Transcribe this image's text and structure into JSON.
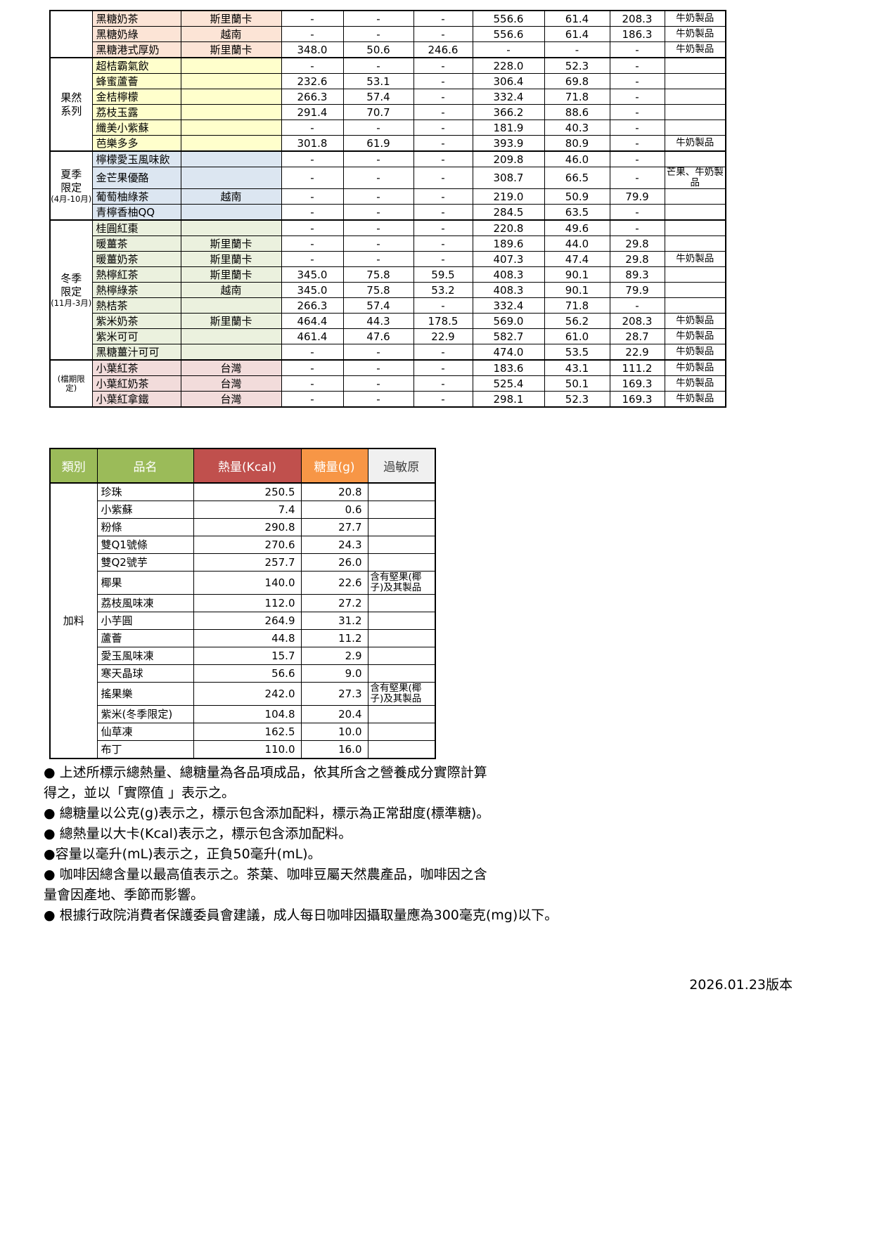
{
  "colors": {
    "header_green": "#9bbb59",
    "header_red": "#c0504d",
    "header_orange": "#f79646",
    "header_gray": "#f0f0f0"
  },
  "table1": {
    "groups": [
      {
        "label": "",
        "sublabel": "",
        "color": "#fce4d6",
        "rows": [
          {
            "name": "黑糖奶茶",
            "origin": "斯里蘭卡",
            "vals": [
              "-",
              "-",
              "-",
              "556.6",
              "61.4",
              "208.3"
            ],
            "allergen": "牛奶製品"
          },
          {
            "name": "黑糖奶綠",
            "origin": "越南",
            "vals": [
              "-",
              "-",
              "-",
              "556.6",
              "61.4",
              "186.3"
            ],
            "allergen": "牛奶製品"
          },
          {
            "name": "黑糖港式厚奶",
            "origin": "斯里蘭卡",
            "vals": [
              "348.0",
              "50.6",
              "246.6",
              "-",
              "-",
              "-"
            ],
            "allergen": "牛奶製品"
          }
        ]
      },
      {
        "label": "果然\n系列",
        "sublabel": "",
        "color": "#ffffcc",
        "rows": [
          {
            "name": "超桔霸氣飲",
            "origin": "",
            "vals": [
              "-",
              "-",
              "-",
              "228.0",
              "52.3",
              "-"
            ],
            "allergen": ""
          },
          {
            "name": "蜂蜜蘆薈",
            "origin": "",
            "vals": [
              "232.6",
              "53.1",
              "-",
              "306.4",
              "69.8",
              "-"
            ],
            "allergen": ""
          },
          {
            "name": "金桔檸檬",
            "origin": "",
            "vals": [
              "266.3",
              "57.4",
              "-",
              "332.4",
              "71.8",
              "-"
            ],
            "allergen": ""
          },
          {
            "name": "荔枝玉露",
            "origin": "",
            "vals": [
              "291.4",
              "70.7",
              "-",
              "366.2",
              "88.6",
              "-"
            ],
            "allergen": ""
          },
          {
            "name": "纖美小紫蘇",
            "origin": "",
            "vals": [
              "-",
              "-",
              "-",
              "181.9",
              "40.3",
              "-"
            ],
            "allergen": ""
          },
          {
            "name": "芭樂多多",
            "origin": "",
            "vals": [
              "301.8",
              "61.9",
              "-",
              "393.9",
              "80.9",
              "-"
            ],
            "allergen": "牛奶製品"
          }
        ]
      },
      {
        "label": "夏季\n限定",
        "sublabel": "(4月-10月)",
        "color": "#dce6f1",
        "rows": [
          {
            "name": "檸檬愛玉風味飲",
            "origin": "",
            "vals": [
              "-",
              "-",
              "-",
              "209.8",
              "46.0",
              "-"
            ],
            "allergen": ""
          },
          {
            "name": "金芒果優酪",
            "origin": "",
            "vals": [
              "-",
              "-",
              "-",
              "308.7",
              "66.5",
              "-"
            ],
            "allergen": "芒果、牛奶製品"
          },
          {
            "name": "葡萄柚綠茶",
            "origin": "越南",
            "vals": [
              "-",
              "-",
              "-",
              "219.0",
              "50.9",
              "79.9"
            ],
            "allergen": ""
          },
          {
            "name": "青檸香柚QQ",
            "origin": "",
            "vals": [
              "-",
              "-",
              "-",
              "284.5",
              "63.5",
              "-"
            ],
            "allergen": ""
          }
        ]
      },
      {
        "label": "冬季\n限定",
        "sublabel": "(11月-3月)",
        "color": "#ebf1de",
        "rows": [
          {
            "name": "桂圓紅棗",
            "origin": "",
            "vals": [
              "-",
              "-",
              "-",
              "220.8",
              "49.6",
              "-"
            ],
            "allergen": ""
          },
          {
            "name": "暖薑茶",
            "origin": "斯里蘭卡",
            "vals": [
              "-",
              "-",
              "-",
              "189.6",
              "44.0",
              "29.8"
            ],
            "allergen": ""
          },
          {
            "name": "暖薑奶茶",
            "origin": "斯里蘭卡",
            "vals": [
              "-",
              "-",
              "-",
              "407.3",
              "47.4",
              "29.8"
            ],
            "allergen": "牛奶製品"
          },
          {
            "name": "熱檸紅茶",
            "origin": "斯里蘭卡",
            "vals": [
              "345.0",
              "75.8",
              "59.5",
              "408.3",
              "90.1",
              "89.3"
            ],
            "allergen": ""
          },
          {
            "name": "熱檸綠茶",
            "origin": "越南",
            "vals": [
              "345.0",
              "75.8",
              "53.2",
              "408.3",
              "90.1",
              "79.9"
            ],
            "allergen": ""
          },
          {
            "name": "熱桔茶",
            "origin": "",
            "vals": [
              "266.3",
              "57.4",
              "-",
              "332.4",
              "71.8",
              "-"
            ],
            "allergen": ""
          },
          {
            "name": "紫米奶茶",
            "origin": "斯里蘭卡",
            "vals": [
              "464.4",
              "44.3",
              "178.5",
              "569.0",
              "56.2",
              "208.3"
            ],
            "allergen": "牛奶製品"
          },
          {
            "name": "紫米可可",
            "origin": "",
            "vals": [
              "461.4",
              "47.6",
              "22.9",
              "582.7",
              "61.0",
              "28.7"
            ],
            "allergen": "牛奶製品"
          },
          {
            "name": "黑糖薑汁可可",
            "origin": "",
            "vals": [
              "-",
              "-",
              "-",
              "474.0",
              "53.5",
              "22.9"
            ],
            "allergen": "牛奶製品"
          }
        ]
      },
      {
        "label": "",
        "sublabel": "(檔期限\n定)",
        "color": "#f2dcdb",
        "rows": [
          {
            "name": "小葉紅茶",
            "origin": "台灣",
            "vals": [
              "-",
              "-",
              "-",
              "183.6",
              "43.1",
              "111.2"
            ],
            "allergen": "牛奶製品"
          },
          {
            "name": "小葉紅奶茶",
            "origin": "台灣",
            "vals": [
              "-",
              "-",
              "-",
              "525.4",
              "50.1",
              "169.3"
            ],
            "allergen": "牛奶製品"
          },
          {
            "name": "小葉紅拿鐵",
            "origin": "台灣",
            "vals": [
              "-",
              "-",
              "-",
              "298.1",
              "52.3",
              "169.3"
            ],
            "allergen": "牛奶製品"
          }
        ]
      }
    ]
  },
  "table2": {
    "headers": {
      "category": "類別",
      "name": "品名",
      "kcal": "熱量(Kcal)",
      "sugar": "糖量(g)",
      "allergen": "過敏原"
    },
    "category": "加料",
    "rows": [
      {
        "name": "珍珠",
        "kcal": "250.5",
        "sugar": "20.8",
        "allergen": ""
      },
      {
        "name": "小紫蘇",
        "kcal": "7.4",
        "sugar": "0.6",
        "allergen": ""
      },
      {
        "name": "粉條",
        "kcal": "290.8",
        "sugar": "27.7",
        "allergen": ""
      },
      {
        "name": "雙Q1號條",
        "kcal": "270.6",
        "sugar": "24.3",
        "allergen": ""
      },
      {
        "name": "雙Q2號芋",
        "kcal": "257.7",
        "sugar": "26.0",
        "allergen": ""
      },
      {
        "name": "椰果",
        "kcal": "140.0",
        "sugar": "22.6",
        "allergen": "含有堅果(椰子)及其製品"
      },
      {
        "name": "荔枝風味凍",
        "kcal": "112.0",
        "sugar": "27.2",
        "allergen": ""
      },
      {
        "name": "小芋圓",
        "kcal": "264.9",
        "sugar": "31.2",
        "allergen": ""
      },
      {
        "name": "蘆薈",
        "kcal": "44.8",
        "sugar": "11.2",
        "allergen": ""
      },
      {
        "name": "愛玉風味凍",
        "kcal": "15.7",
        "sugar": "2.9",
        "allergen": ""
      },
      {
        "name": "寒天晶球",
        "kcal": "56.6",
        "sugar": "9.0",
        "allergen": ""
      },
      {
        "name": "搖果樂",
        "kcal": "242.0",
        "sugar": "27.3",
        "allergen": "含有堅果(椰子)及其製品"
      },
      {
        "name": "紫米(冬季限定)",
        "kcal": "104.8",
        "sugar": "20.4",
        "allergen": ""
      },
      {
        "name": "仙草凍",
        "kcal": "162.5",
        "sugar": "10.0",
        "allergen": ""
      },
      {
        "name": "布丁",
        "kcal": "110.0",
        "sugar": "16.0",
        "allergen": ""
      }
    ]
  },
  "notes": [
    "● 上述所標示總熱量、總糖量為各品項成品，依其所含之營養成分實際計算\n得之，並以「實際值 」表示之。",
    "● 總糖量以公克(g)表示之，標示包含添加配料，標示為正常甜度(標準糖)。",
    "● 總熱量以大卡(Kcal)表示之，標示包含添加配料。",
    "●容量以毫升(mL)表示之，正負50毫升(mL)。",
    "● 咖啡因總含量以最高值表示之。茶葉、咖啡豆屬天然農產品，咖啡因之含\n量會因產地、季節而影響。",
    "● 根據行政院消費者保護委員會建議，成人每日咖啡因攝取量應為300毫克(mg)以下。"
  ],
  "version_label": "2026.01.23版本"
}
